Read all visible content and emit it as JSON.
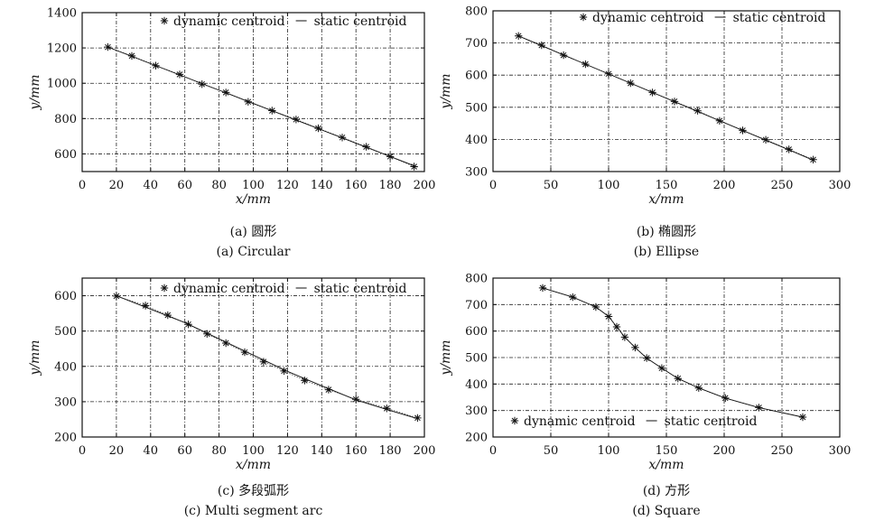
{
  "chart_data": [
    {
      "type": "line",
      "caption_cn": "(a) 圆形",
      "caption_en": "(a) Circular",
      "xlabel": "x/mm",
      "ylabel": "y/mm",
      "xlim": [
        0,
        200
      ],
      "ylim": [
        500,
        1400
      ],
      "xticks": [
        0,
        20,
        40,
        60,
        80,
        100,
        120,
        140,
        160,
        180,
        200
      ],
      "yticks": [
        600,
        800,
        1000,
        1200,
        1400
      ],
      "grid": true,
      "legend_position": "top-right",
      "series": [
        {
          "name": "dynamic centroid",
          "marker": "star",
          "x": [
            15,
            29,
            43,
            57,
            70,
            84,
            97,
            111,
            125,
            138,
            152,
            166,
            180,
            194
          ],
          "y": [
            1205,
            1155,
            1100,
            1050,
            995,
            948,
            895,
            845,
            795,
            745,
            693,
            640,
            585,
            528
          ]
        },
        {
          "name": "static centroid",
          "marker": "none",
          "x": [
            15,
            196
          ],
          "y": [
            1205,
            525
          ]
        }
      ]
    },
    {
      "type": "line",
      "caption_cn": "(b) 椭圆形",
      "caption_en": "(b) Ellipse",
      "xlabel": "x/mm",
      "ylabel": "y/mm",
      "xlim": [
        0,
        300
      ],
      "ylim": [
        300,
        800
      ],
      "xticks": [
        0,
        50,
        100,
        150,
        200,
        250,
        300
      ],
      "yticks": [
        300,
        400,
        500,
        600,
        700,
        800
      ],
      "grid": true,
      "legend_position": "top-right",
      "series": [
        {
          "name": "dynamic centroid",
          "marker": "star",
          "x": [
            22,
            42,
            61,
            80,
            100,
            119,
            138,
            157,
            177,
            196,
            216,
            236,
            256,
            277
          ],
          "y": [
            722,
            693,
            662,
            634,
            604,
            575,
            546,
            518,
            489,
            458,
            428,
            399,
            369,
            337
          ]
        },
        {
          "name": "static centroid",
          "marker": "none",
          "x": [
            22,
            278
          ],
          "y": [
            722,
            334
          ]
        }
      ]
    },
    {
      "type": "line",
      "caption_cn": "(c) 多段弧形",
      "caption_en": "(c) Multi segment arc",
      "xlabel": "x/mm",
      "ylabel": "y/mm",
      "xlim": [
        0,
        200
      ],
      "ylim": [
        200,
        650
      ],
      "xticks": [
        0,
        20,
        40,
        60,
        80,
        100,
        120,
        140,
        160,
        180,
        200
      ],
      "yticks": [
        200,
        300,
        400,
        500,
        600
      ],
      "grid": true,
      "legend_position": "top-right",
      "series": [
        {
          "name": "dynamic centroid",
          "marker": "star",
          "x": [
            20,
            37,
            50,
            62,
            73,
            84,
            95,
            106,
            118,
            130,
            144,
            160,
            178,
            196
          ],
          "y": [
            599,
            572,
            545,
            519,
            492,
            466,
            440,
            413,
            387,
            360,
            334,
            307,
            281,
            254
          ]
        },
        {
          "name": "static centroid",
          "marker": "none",
          "x": [
            20,
            40,
            60,
            80,
            100,
            120,
            140,
            160,
            180,
            196
          ],
          "y": [
            600,
            562,
            524,
            478,
            432,
            386,
            345,
            305,
            275,
            252
          ]
        }
      ]
    },
    {
      "type": "line",
      "caption_cn": "(d) 方形",
      "caption_en": "(d) Square",
      "xlabel": "x/mm",
      "ylabel": "y/mm",
      "xlim": [
        0,
        300
      ],
      "ylim": [
        200,
        800
      ],
      "xticks": [
        0,
        50,
        100,
        150,
        200,
        250,
        300
      ],
      "yticks": [
        200,
        300,
        400,
        500,
        600,
        700,
        800
      ],
      "grid": true,
      "legend_position": "bottom-right",
      "series": [
        {
          "name": "dynamic centroid",
          "marker": "star",
          "x": [
            43,
            69,
            89,
            100,
            107,
            114,
            123,
            133,
            146,
            160,
            178,
            201,
            230,
            268
          ],
          "y": [
            763,
            728,
            691,
            655,
            616,
            577,
            538,
            498,
            460,
            421,
            385,
            347,
            311,
            275
          ]
        },
        {
          "name": "static centroid",
          "marker": "none",
          "x": [
            43,
            69,
            89,
            100,
            107,
            114,
            123,
            133,
            146,
            160,
            178,
            201,
            230,
            268
          ],
          "y": [
            763,
            728,
            691,
            655,
            616,
            577,
            538,
            498,
            460,
            421,
            385,
            347,
            311,
            275
          ]
        }
      ]
    }
  ]
}
